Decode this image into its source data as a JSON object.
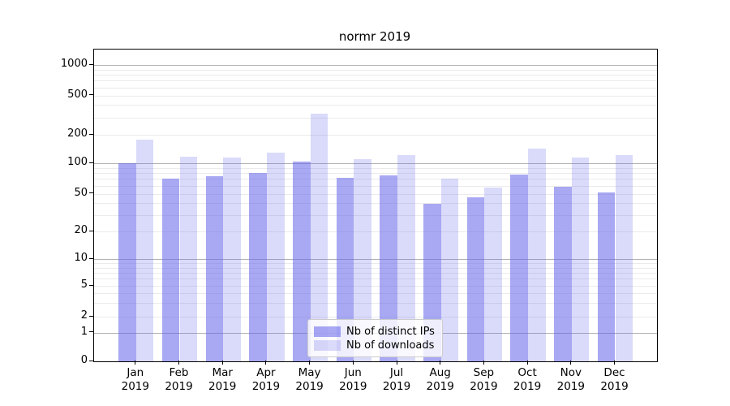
{
  "chart_data": {
    "type": "bar",
    "title": "normr 2019",
    "x_months": [
      "Jan",
      "Feb",
      "Mar",
      "Apr",
      "May",
      "Jun",
      "Jul",
      "Aug",
      "Sep",
      "Oct",
      "Nov",
      "Dec"
    ],
    "x_year_label": "2019",
    "series": [
      {
        "name": "Nb of distinct IPs",
        "fill": "rgba(97,97,234,0.55)",
        "apparent_hex": "#a6a6f1",
        "values": [
          100,
          70,
          75,
          80,
          105,
          72,
          76,
          39,
          46,
          78,
          59,
          52
        ]
      },
      {
        "name": "Nb of downloads",
        "fill": "rgba(97,97,234,0.23)",
        "apparent_hex": "#dadaf8",
        "values": [
          178,
          117,
          115,
          129,
          330,
          110,
          122,
          70,
          58,
          142,
          116,
          122
        ]
      }
    ],
    "y_ticks": [
      0,
      1,
      2,
      5,
      10,
      20,
      50,
      100,
      200,
      500,
      1000
    ],
    "y_tick_labels": [
      "0",
      "1",
      "2",
      "5",
      "10",
      "20",
      "50",
      "100",
      "200",
      "500",
      "1000"
    ],
    "yscale": "log-like (symlog near zero)",
    "ylim": [
      0,
      1200
    ],
    "grid": "both",
    "legend_position": "lower center",
    "colors": {
      "major_grid": "#b3b3b3",
      "minor_grid": "#ebebeb",
      "spine": "#000000",
      "legend_border": "#cccccc",
      "legend_bg": "rgba(255,255,255,0.8)",
      "text": "#000000"
    }
  }
}
